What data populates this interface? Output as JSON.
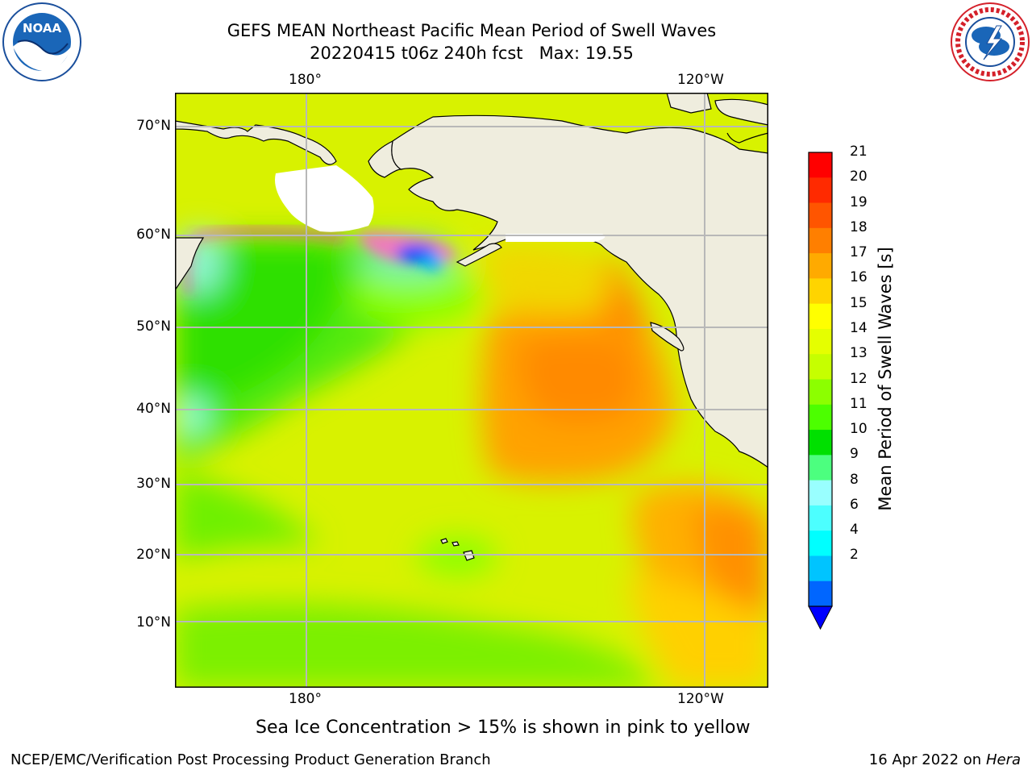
{
  "header": {
    "title_line1": "GEFS MEAN Northeast Pacific Mean Period of Swell Waves",
    "title_line2": "20220415 t06z 240h fcst   Max: 19.55"
  },
  "logos": {
    "left": {
      "icon": "noaa-logo",
      "text": "NOAA"
    },
    "right": {
      "icon": "national-weather-service-logo"
    }
  },
  "map": {
    "lon_labels_top": [
      "180°",
      "120°W"
    ],
    "lon_labels_bottom": [
      "180°",
      "120°W"
    ],
    "lat_labels": [
      "70°N",
      "60°N",
      "50°N",
      "40°N",
      "30°N",
      "20°N",
      "10°N"
    ],
    "land_color": "#efedde",
    "ocean_base_color": "#d8f200"
  },
  "colorbar": {
    "title": "Mean Period of Swell Waves [s]",
    "tick_labels": [
      "21",
      "20",
      "19",
      "18",
      "17",
      "16",
      "15",
      "14",
      "13",
      "12",
      "11",
      "10",
      "9",
      "8",
      "6",
      "4",
      "2"
    ],
    "colors": [
      "#ff0000",
      "#ff2a00",
      "#ff5500",
      "#ff7f00",
      "#ffaa00",
      "#ffd400",
      "#ffff00",
      "#e5ff00",
      "#c6ff00",
      "#8cff00",
      "#4cff00",
      "#00e000",
      "#4cff7f",
      "#99ffff",
      "#4cffff",
      "#00ffff",
      "#00c4ff",
      "#0066ff"
    ],
    "extend_color": "#0000ff"
  },
  "caption": "Sea Ice Concentration > 15% is shown in pink to yellow",
  "footer": {
    "left": "NCEP/EMC/Verification Post Processing Product Generation Branch",
    "date": "16 Apr 2022 on ",
    "machine": "Hera"
  }
}
